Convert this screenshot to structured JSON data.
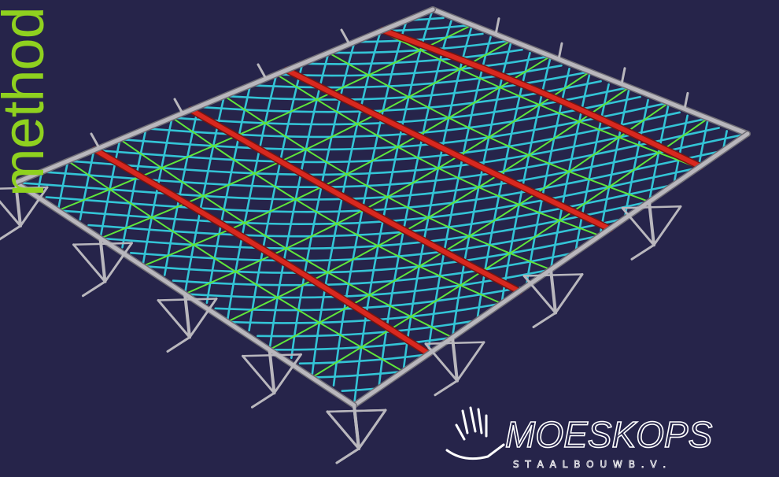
{
  "slide": {
    "vertical_title": "method",
    "background_color": "#26244a",
    "title_color": "#8fd11f"
  },
  "model": {
    "frame_color": "#b9b7bd",
    "grid_color_cyan": "#33c4d6",
    "grid_color_green": "#5fe63a",
    "arch_color": "#d8281f"
  },
  "logo": {
    "name": "MOESKOPS",
    "subtitle": "S T A A L B O U W   B . V .",
    "icon": "hand-logo-icon"
  }
}
